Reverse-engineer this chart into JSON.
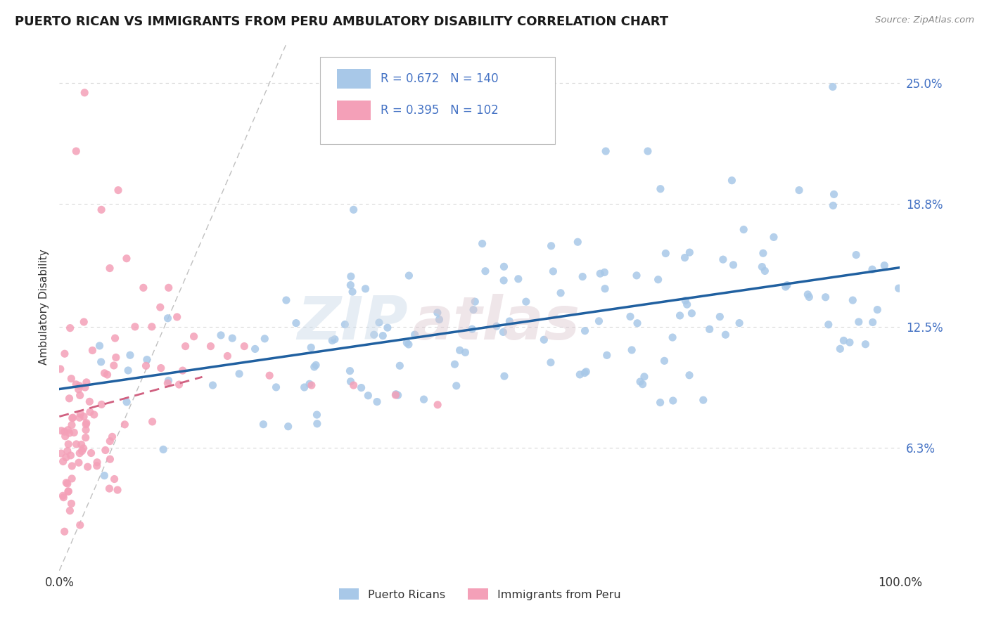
{
  "title": "PUERTO RICAN VS IMMIGRANTS FROM PERU AMBULATORY DISABILITY CORRELATION CHART",
  "source": "Source: ZipAtlas.com",
  "ylabel": "Ambulatory Disability",
  "yticks": [
    0.0,
    0.063,
    0.125,
    0.188,
    0.25
  ],
  "ytick_labels": [
    "",
    "6.3%",
    "12.5%",
    "18.8%",
    "25.0%"
  ],
  "xlim": [
    0.0,
    1.0
  ],
  "ylim": [
    0.0,
    0.27
  ],
  "blue_R": 0.672,
  "blue_N": 140,
  "pink_R": 0.395,
  "pink_N": 102,
  "blue_color": "#a8c8e8",
  "pink_color": "#f4a0b8",
  "blue_line_color": "#2060a0",
  "pink_line_color": "#d06080",
  "legend_label_blue": "Puerto Ricans",
  "legend_label_pink": "Immigrants from Peru",
  "background_color": "#ffffff",
  "grid_color": "#d8d8d8",
  "ref_line_color": "#c0c0c0",
  "tick_color": "#4472c4",
  "title_color": "#1a1a1a",
  "source_color": "#888888"
}
